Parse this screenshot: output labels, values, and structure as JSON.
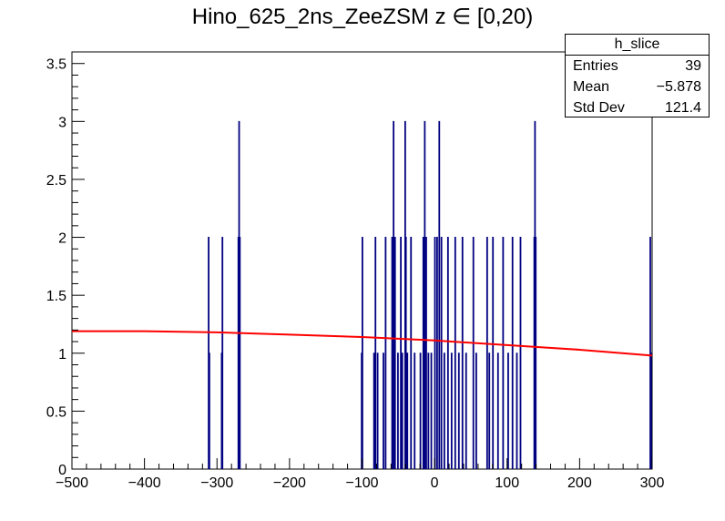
{
  "title": "Hino_625_2ns_ZeeZSM z  ∈ [0,20)",
  "stats": {
    "name": "h_slice",
    "entries_label": "Entries",
    "entries_value": "39",
    "mean_label": "Mean",
    "mean_value": "−5.878",
    "stddev_label": "Std Dev",
    "stddev_value": "121.4"
  },
  "colors": {
    "histogram": "#000080",
    "fit": "#ff0000",
    "axis": "#000000"
  },
  "chart_data": {
    "type": "bar",
    "title": "Hino_625_2ns_ZeeZSM z  ∈ [0,20)",
    "xlabel": "",
    "ylabel": "",
    "xlim": [
      -500,
      300
    ],
    "ylim": [
      0,
      3.6
    ],
    "x_ticks": [
      -500,
      -400,
      -300,
      -200,
      -100,
      0,
      100,
      200,
      300
    ],
    "x_tick_labels": [
      "−500",
      "−400",
      "−300",
      "−200",
      "−100",
      "0",
      "100",
      "200",
      "300"
    ],
    "y_ticks": [
      0,
      0.5,
      1,
      1.5,
      2,
      2.5,
      3,
      3.5
    ],
    "y_tick_labels": [
      "0",
      "0.5",
      "1",
      "1.5",
      "2",
      "2.5",
      "3",
      "3.5"
    ],
    "grid": false,
    "series": [
      {
        "values": [
          {
            "x": -312,
            "y": 2
          },
          {
            "x": -311,
            "y": 1
          },
          {
            "x": -294,
            "y": 1
          },
          {
            "x": -293,
            "y": 2
          },
          {
            "x": -271,
            "y": 2
          },
          {
            "x": -270,
            "y": 3
          },
          {
            "x": -269,
            "y": 2
          },
          {
            "x": -101,
            "y": 1
          },
          {
            "x": -100,
            "y": 2
          },
          {
            "x": -84,
            "y": 1
          },
          {
            "x": -82,
            "y": 2
          },
          {
            "x": -79,
            "y": 1
          },
          {
            "x": -71,
            "y": 1
          },
          {
            "x": -68,
            "y": 2
          },
          {
            "x": -59,
            "y": 2
          },
          {
            "x": -57,
            "y": 3
          },
          {
            "x": -55,
            "y": 2
          },
          {
            "x": -51,
            "y": 1
          },
          {
            "x": -47,
            "y": 2
          },
          {
            "x": -45,
            "y": 1
          },
          {
            "x": -41,
            "y": 3
          },
          {
            "x": -40,
            "y": 2
          },
          {
            "x": -38,
            "y": 1
          },
          {
            "x": -33,
            "y": 2
          },
          {
            "x": -28,
            "y": 1
          },
          {
            "x": -20,
            "y": 1
          },
          {
            "x": -16,
            "y": 2
          },
          {
            "x": -14,
            "y": 3
          },
          {
            "x": -12,
            "y": 2
          },
          {
            "x": -9,
            "y": 1
          },
          {
            "x": -5,
            "y": 1
          },
          {
            "x": 0,
            "y": 2
          },
          {
            "x": 3,
            "y": 2
          },
          {
            "x": 6,
            "y": 3
          },
          {
            "x": 9,
            "y": 2
          },
          {
            "x": 13,
            "y": 1
          },
          {
            "x": 18,
            "y": 2
          },
          {
            "x": 23,
            "y": 1
          },
          {
            "x": 28,
            "y": 2
          },
          {
            "x": 33,
            "y": 1
          },
          {
            "x": 38,
            "y": 2
          },
          {
            "x": 43,
            "y": 1
          },
          {
            "x": 53,
            "y": 2
          },
          {
            "x": 57,
            "y": 1
          },
          {
            "x": 72,
            "y": 2
          },
          {
            "x": 75,
            "y": 1
          },
          {
            "x": 80,
            "y": 2
          },
          {
            "x": 87,
            "y": 1
          },
          {
            "x": 94,
            "y": 2
          },
          {
            "x": 101,
            "y": 1
          },
          {
            "x": 107,
            "y": 2
          },
          {
            "x": 113,
            "y": 1
          },
          {
            "x": 118,
            "y": 2
          },
          {
            "x": 137,
            "y": 2
          },
          {
            "x": 138,
            "y": 3
          },
          {
            "x": 139,
            "y": 2
          },
          {
            "x": 297,
            "y": 2
          },
          {
            "x": 298,
            "y": 1
          }
        ]
      }
    ],
    "fit": {
      "x": [
        -500,
        -400,
        -300,
        -200,
        -100,
        0,
        100,
        200,
        300
      ],
      "y": [
        1.19,
        1.19,
        1.18,
        1.16,
        1.14,
        1.11,
        1.07,
        1.03,
        0.98
      ]
    }
  }
}
